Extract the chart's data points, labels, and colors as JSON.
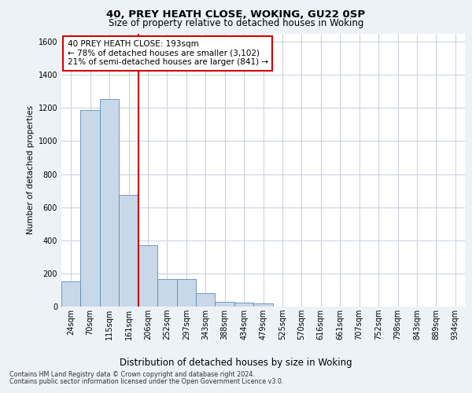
{
  "title1": "40, PREY HEATH CLOSE, WOKING, GU22 0SP",
  "title2": "Size of property relative to detached houses in Woking",
  "xlabel": "Distribution of detached houses by size in Woking",
  "ylabel": "Number of detached properties",
  "categories": [
    "24sqm",
    "70sqm",
    "115sqm",
    "161sqm",
    "206sqm",
    "252sqm",
    "297sqm",
    "343sqm",
    "388sqm",
    "434sqm",
    "479sqm",
    "525sqm",
    "570sqm",
    "616sqm",
    "661sqm",
    "707sqm",
    "752sqm",
    "798sqm",
    "843sqm",
    "889sqm",
    "934sqm"
  ],
  "values": [
    150,
    1185,
    1255,
    675,
    370,
    165,
    165,
    80,
    30,
    25,
    20,
    0,
    0,
    0,
    0,
    0,
    0,
    0,
    0,
    0,
    0
  ],
  "bar_color": "#c8d8e8",
  "bar_edge_color": "#5b8db8",
  "vline_color": "#cc0000",
  "vline_pos": 3.5,
  "annotation_text": "40 PREY HEATH CLOSE: 193sqm\n← 78% of detached houses are smaller (3,102)\n21% of semi-detached houses are larger (841) →",
  "annotation_box_color": "#ffffff",
  "annotation_box_edge": "#cc0000",
  "ylim": [
    0,
    1650
  ],
  "yticks": [
    0,
    200,
    400,
    600,
    800,
    1000,
    1200,
    1400,
    1600
  ],
  "footer1": "Contains HM Land Registry data © Crown copyright and database right 2024.",
  "footer2": "Contains public sector information licensed under the Open Government Licence v3.0.",
  "bg_color": "#edf2f7",
  "plot_bg_color": "#ffffff",
  "grid_color": "#c8d0da",
  "title1_fontsize": 9.5,
  "title2_fontsize": 8.5,
  "ylabel_fontsize": 7.5,
  "xlabel_fontsize": 8.5,
  "tick_fontsize": 7,
  "annotation_fontsize": 7.5,
  "footer_fontsize": 5.8
}
